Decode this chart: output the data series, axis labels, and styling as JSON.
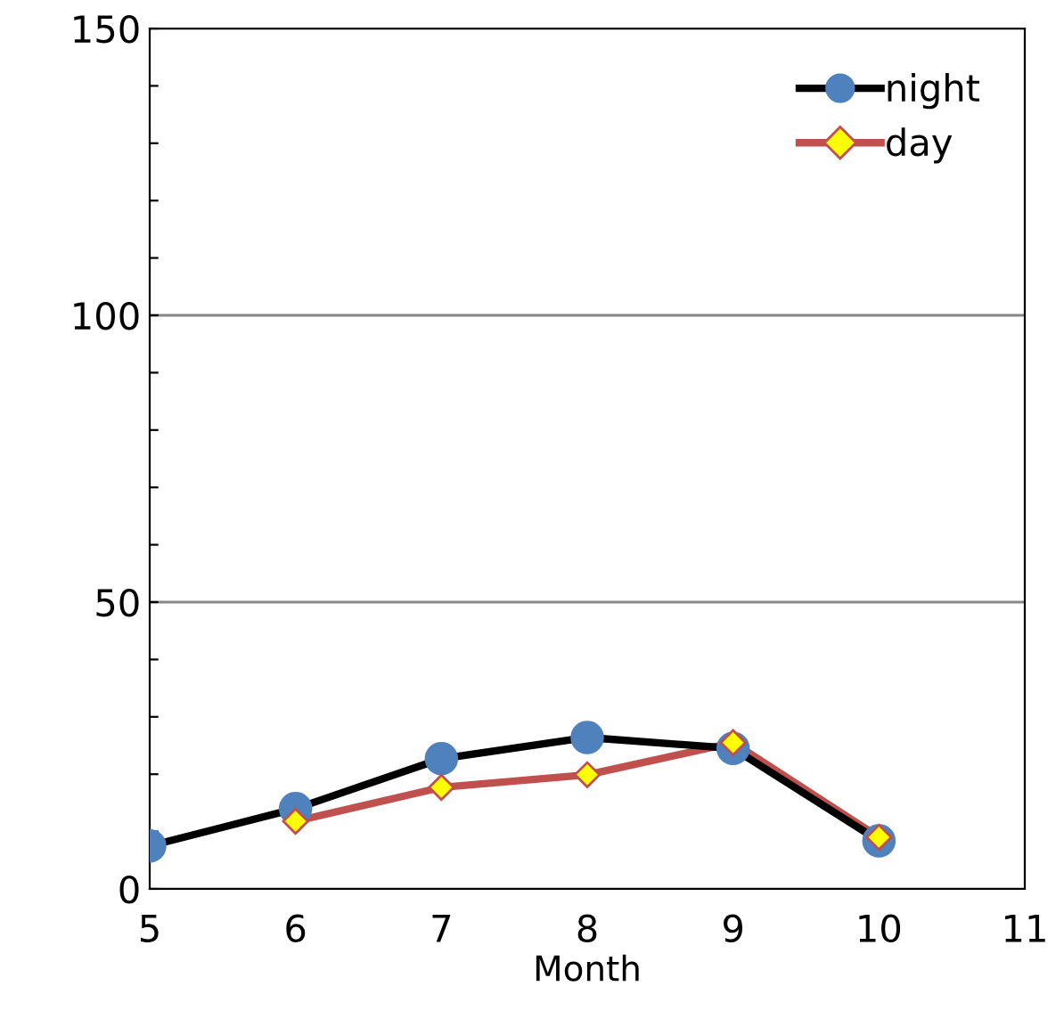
{
  "chart_data": {
    "type": "line",
    "xlabel": "Month",
    "xlim": [
      5,
      11
    ],
    "xticks": [
      5,
      6,
      7,
      8,
      9,
      10,
      11
    ],
    "ylim": [
      0,
      150
    ],
    "yticks": [
      0,
      {
        "value": 10,
        "label": null
      },
      {
        "value": 20,
        "label": null
      },
      {
        "value": 30,
        "label": null
      },
      {
        "value": 40,
        "label": null
      },
      50,
      {
        "value": 60,
        "label": null
      },
      {
        "value": 70,
        "label": null
      },
      {
        "value": 80,
        "label": null
      },
      {
        "value": 90,
        "label": null
      },
      100,
      {
        "value": 110,
        "label": null
      },
      {
        "value": 120,
        "label": null
      },
      {
        "value": 130,
        "label": null
      },
      {
        "value": 140,
        "label": null
      },
      150
    ],
    "grid": "y",
    "legend": "top right",
    "line_style": "solid",
    "series": [
      {
        "name": "night",
        "color": "#000000",
        "marker": "circle",
        "colors": [
          "#4f81bd",
          "#4f81bd",
          "#4f81bd",
          "#4f81bd",
          "#4f81bd",
          "#4f81bd"
        ],
        "x": [
          5,
          6,
          7,
          8,
          9,
          10
        ],
        "values": [
          7.5,
          14,
          22.7,
          26.4,
          24.5,
          8.4
        ]
      },
      {
        "name": "day",
        "color": "#c0504d",
        "marker": "diamond",
        "colors": [
          "#ffff00",
          "#ffff00",
          "#ffff00",
          "#ffff00",
          "#ffff00"
        ],
        "x": [
          6,
          7,
          8,
          9,
          10
        ],
        "values": [
          11.8,
          17.7,
          19.9,
          25.5,
          9
        ]
      }
    ]
  }
}
